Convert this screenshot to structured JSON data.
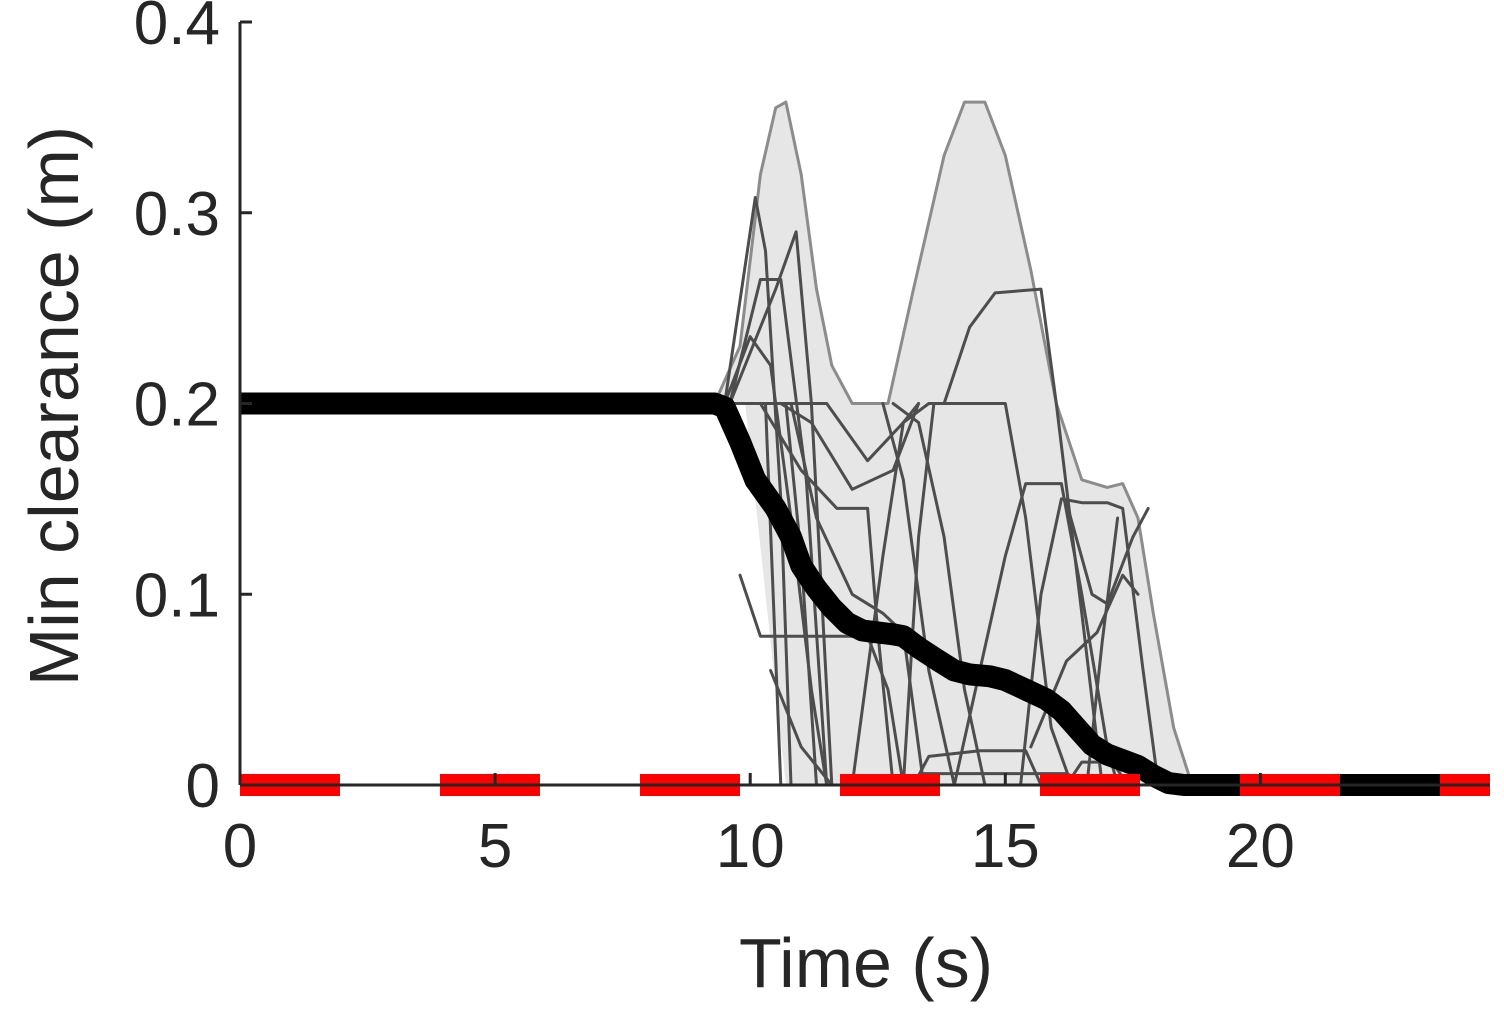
{
  "chart_data": {
    "type": "line",
    "title": "",
    "xlabel": "Time (s)",
    "ylabel": "Min clearance (m)",
    "xlim": [
      0,
      24.5
    ],
    "ylim": [
      0,
      0.4
    ],
    "xticks": [
      0,
      5,
      10,
      15,
      20
    ],
    "xtick_labels": [
      "0",
      "5",
      "10",
      "15",
      "20"
    ],
    "yticks": [
      0,
      0.1,
      0.2,
      0.3,
      0.4
    ],
    "ytick_labels": [
      "0",
      "0.1",
      "0.2",
      "0.3",
      "0.4"
    ],
    "grid": false,
    "legend": "none",
    "colors": {
      "envelope_fill": "#e6e6e6",
      "envelope_edge": "#8c8c8c",
      "sample": "#4d4d4d",
      "nominal": "#000000",
      "threshold": "#ff0000",
      "axis": "#262626"
    },
    "envelope": {
      "upper": [
        [
          9.3,
          0.2
        ],
        [
          9.8,
          0.23
        ],
        [
          10.2,
          0.32
        ],
        [
          10.5,
          0.355
        ],
        [
          10.7,
          0.358
        ],
        [
          11.0,
          0.32
        ],
        [
          11.3,
          0.26
        ],
        [
          11.6,
          0.22
        ],
        [
          12.0,
          0.2
        ],
        [
          12.7,
          0.2
        ],
        [
          13.2,
          0.26
        ],
        [
          13.8,
          0.33
        ],
        [
          14.2,
          0.358
        ],
        [
          14.6,
          0.358
        ],
        [
          15.0,
          0.33
        ],
        [
          15.5,
          0.27
        ],
        [
          16.0,
          0.2
        ],
        [
          16.5,
          0.16
        ],
        [
          17.0,
          0.156
        ],
        [
          17.3,
          0.158
        ],
        [
          17.6,
          0.14
        ],
        [
          17.9,
          0.09
        ],
        [
          18.3,
          0.03
        ],
        [
          18.6,
          0.005
        ],
        [
          18.9,
          0.0
        ]
      ],
      "lower": [
        [
          18.9,
          0.0
        ],
        [
          10.7,
          0.0
        ],
        [
          9.9,
          0.2
        ],
        [
          9.3,
          0.2
        ]
      ]
    },
    "samples": [
      [
        [
          9.5,
          0.2
        ],
        [
          10.1,
          0.308
        ],
        [
          10.3,
          0.28
        ],
        [
          10.6,
          0.15
        ],
        [
          10.8,
          0.0
        ]
      ],
      [
        [
          9.6,
          0.2
        ],
        [
          10.2,
          0.265
        ],
        [
          10.6,
          0.265
        ],
        [
          11.1,
          0.16
        ],
        [
          11.5,
          0.0
        ]
      ],
      [
        [
          9.6,
          0.2
        ],
        [
          10.5,
          0.26
        ],
        [
          10.9,
          0.29
        ],
        [
          11.2,
          0.2
        ],
        [
          11.6,
          0.0
        ]
      ],
      [
        [
          9.5,
          0.2
        ],
        [
          10.0,
          0.235
        ],
        [
          10.4,
          0.22
        ],
        [
          10.8,
          0.14
        ],
        [
          11.2,
          0.05
        ],
        [
          11.5,
          0.0
        ]
      ],
      [
        [
          9.6,
          0.2
        ],
        [
          10.7,
          0.2
        ],
        [
          11.0,
          0.12
        ],
        [
          11.3,
          0.0
        ]
      ],
      [
        [
          9.7,
          0.2
        ],
        [
          11.5,
          0.2
        ],
        [
          12.3,
          0.17
        ],
        [
          13.0,
          0.19
        ],
        [
          13.5,
          0.2
        ],
        [
          14.2,
          0.2
        ],
        [
          15.0,
          0.2
        ],
        [
          15.4,
          0.14
        ],
        [
          15.9,
          0.03
        ],
        [
          16.3,
          0.0
        ]
      ],
      [
        [
          10.2,
          0.2
        ],
        [
          11.0,
          0.165
        ],
        [
          11.7,
          0.145
        ],
        [
          12.3,
          0.145
        ],
        [
          12.5,
          0.08
        ],
        [
          12.8,
          0.0
        ]
      ],
      [
        [
          10.6,
          0.2
        ],
        [
          11.2,
          0.19
        ],
        [
          12.0,
          0.155
        ],
        [
          12.8,
          0.165
        ],
        [
          13.3,
          0.2
        ]
      ],
      [
        [
          10.3,
          0.2
        ],
        [
          10.6,
          0.0
        ]
      ],
      [
        [
          10.8,
          0.2
        ],
        [
          11.3,
          0.14
        ],
        [
          12.0,
          0.1
        ],
        [
          12.6,
          0.09
        ],
        [
          13.0,
          0.08
        ],
        [
          13.4,
          0.0
        ]
      ],
      [
        [
          9.8,
          0.11
        ],
        [
          10.2,
          0.078
        ],
        [
          11.5,
          0.078
        ],
        [
          12.3,
          0.078
        ],
        [
          12.7,
          0.05
        ],
        [
          13.0,
          0.0
        ]
      ],
      [
        [
          10.4,
          0.06
        ],
        [
          11.0,
          0.02
        ],
        [
          11.6,
          0.0
        ]
      ],
      [
        [
          12.6,
          0.2
        ],
        [
          13.0,
          0.16
        ],
        [
          13.5,
          0.06
        ],
        [
          14.0,
          0.0
        ]
      ],
      [
        [
          12.8,
          0.2
        ],
        [
          13.3,
          0.19
        ],
        [
          13.8,
          0.13
        ],
        [
          14.2,
          0.05
        ],
        [
          14.6,
          0.0
        ]
      ],
      [
        [
          13.8,
          0.2
        ],
        [
          14.3,
          0.24
        ],
        [
          14.8,
          0.258
        ],
        [
          15.7,
          0.26
        ],
        [
          16.0,
          0.2
        ],
        [
          16.5,
          0.09
        ],
        [
          16.9,
          0.0
        ]
      ],
      [
        [
          12.0,
          0.0
        ],
        [
          12.6,
          0.12
        ],
        [
          13.0,
          0.19
        ],
        [
          13.3,
          0.2
        ]
      ],
      [
        [
          13.0,
          0.0
        ],
        [
          13.3,
          0.13
        ],
        [
          13.6,
          0.2
        ]
      ],
      [
        [
          13.2,
          0.0
        ],
        [
          13.5,
          0.015
        ],
        [
          14.5,
          0.018
        ],
        [
          15.4,
          0.018
        ],
        [
          15.7,
          0.0
        ]
      ],
      [
        [
          14.0,
          0.0
        ],
        [
          14.5,
          0.06
        ],
        [
          15.0,
          0.12
        ],
        [
          15.4,
          0.158
        ],
        [
          16.1,
          0.158
        ],
        [
          16.5,
          0.1
        ],
        [
          17.0,
          0.02
        ],
        [
          17.2,
          0.0
        ]
      ],
      [
        [
          15.3,
          0.0
        ],
        [
          15.7,
          0.1
        ],
        [
          16.1,
          0.15
        ],
        [
          16.5,
          0.148
        ],
        [
          17.0,
          0.148
        ],
        [
          17.3,
          0.145
        ],
        [
          17.7,
          0.06
        ],
        [
          18.0,
          0.0
        ]
      ],
      [
        [
          15.5,
          0.02
        ],
        [
          16.2,
          0.065
        ],
        [
          16.8,
          0.08
        ],
        [
          17.3,
          0.11
        ],
        [
          17.6,
          0.1
        ]
      ],
      [
        [
          16.2,
          0.148
        ],
        [
          16.7,
          0.1
        ],
        [
          17.0,
          0.095
        ],
        [
          17.5,
          0.13
        ],
        [
          17.8,
          0.145
        ]
      ],
      [
        [
          16.6,
          0.0
        ],
        [
          16.9,
          0.075
        ],
        [
          17.2,
          0.14
        ]
      ],
      [
        [
          13.4,
          0.006
        ],
        [
          14.5,
          0.006
        ],
        [
          15.6,
          0.006
        ],
        [
          16.2,
          0.006
        ],
        [
          16.7,
          0.0
        ]
      ],
      [
        [
          16.2,
          0.0
        ],
        [
          16.5,
          0.012
        ],
        [
          17.1,
          0.012
        ],
        [
          17.4,
          0.0
        ]
      ]
    ],
    "nominal": [
      [
        0,
        0.2
      ],
      [
        9.3,
        0.2
      ],
      [
        9.5,
        0.198
      ],
      [
        9.8,
        0.18
      ],
      [
        10.1,
        0.16
      ],
      [
        10.5,
        0.145
      ],
      [
        10.8,
        0.13
      ],
      [
        11.0,
        0.115
      ],
      [
        11.3,
        0.103
      ],
      [
        11.6,
        0.093
      ],
      [
        11.9,
        0.085
      ],
      [
        12.2,
        0.081
      ],
      [
        12.5,
        0.08
      ],
      [
        12.8,
        0.079
      ],
      [
        13.0,
        0.078
      ],
      [
        13.3,
        0.072
      ],
      [
        13.7,
        0.065
      ],
      [
        14.0,
        0.06
      ],
      [
        14.3,
        0.058
      ],
      [
        14.7,
        0.057
      ],
      [
        15.0,
        0.055
      ],
      [
        15.4,
        0.05
      ],
      [
        15.8,
        0.045
      ],
      [
        16.1,
        0.039
      ],
      [
        16.4,
        0.03
      ],
      [
        16.7,
        0.021
      ],
      [
        17.0,
        0.016
      ],
      [
        17.3,
        0.013
      ],
      [
        17.6,
        0.01
      ],
      [
        17.9,
        0.005
      ],
      [
        18.2,
        0.001
      ],
      [
        18.5,
        0.0
      ],
      [
        24.5,
        0.0
      ]
    ],
    "threshold": [
      [
        0,
        0.0
      ],
      [
        24.5,
        0.0
      ]
    ]
  }
}
